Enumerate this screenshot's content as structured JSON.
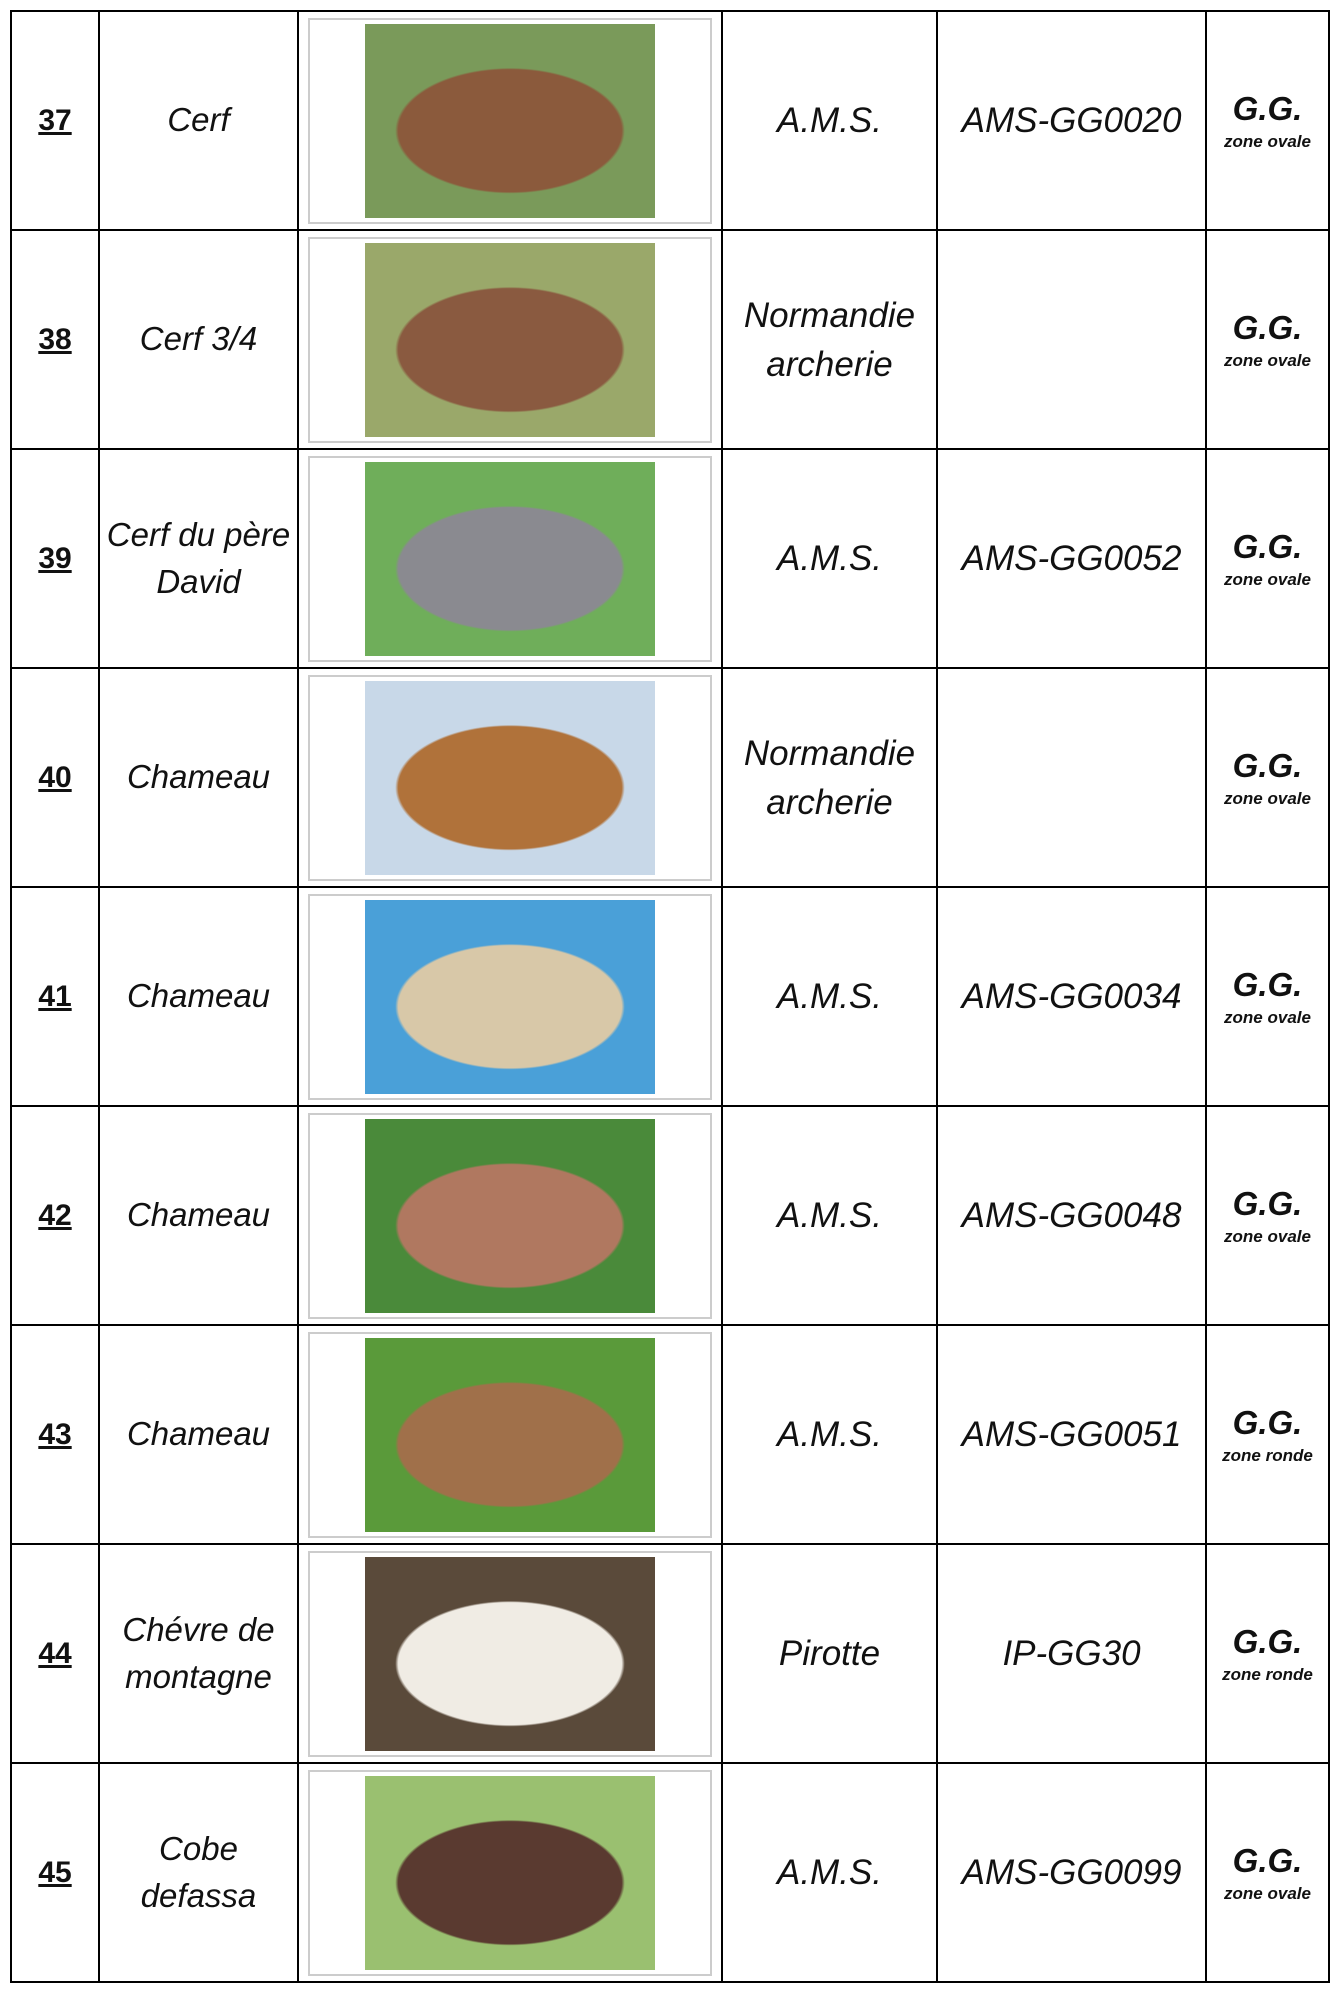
{
  "table": {
    "rows": [
      {
        "number": "37",
        "name": "Cerf",
        "maker": "A.M.S.",
        "ref": "AMS-GG0020",
        "size": "G.G.",
        "zone": "zone ovale"
      },
      {
        "number": "38",
        "name": "Cerf 3/4",
        "maker": "Normandie archerie",
        "size": "G.G.",
        "zone": "zone ovale"
      },
      {
        "number": "39",
        "name": "Cerf du père David",
        "maker": "A.M.S.",
        "ref": "AMS-GG0052",
        "size": "G.G.",
        "zone": "zone ovale"
      },
      {
        "number": "40",
        "name": "Chameau",
        "maker": "Normandie archerie",
        "size": "G.G.",
        "zone": "zone ovale"
      },
      {
        "number": "41",
        "name": "Chameau",
        "maker": "A.M.S.",
        "ref": "AMS-GG0034",
        "size": "G.G.",
        "zone": "zone ovale"
      },
      {
        "number": "42",
        "name": "Chameau",
        "maker": "A.M.S.",
        "ref": "AMS-GG0048",
        "size": "G.G.",
        "zone": "zone ovale"
      },
      {
        "number": "43",
        "name": "Chameau",
        "maker": "A.M.S.",
        "ref": "AMS-GG0051",
        "size": "G.G.",
        "zone": "zone ronde"
      },
      {
        "number": "44",
        "name": "Chévre de montagne",
        "maker": "Pirotte",
        "ref": "IP-GG30",
        "size": "G.G.",
        "zone": "zone ronde"
      },
      {
        "number": "45",
        "name": "Cobe defassa",
        "maker": "A.M.S.",
        "ref": "AMS-GG0099",
        "size": "G.G.",
        "zone": "zone ovale"
      }
    ]
  }
}
